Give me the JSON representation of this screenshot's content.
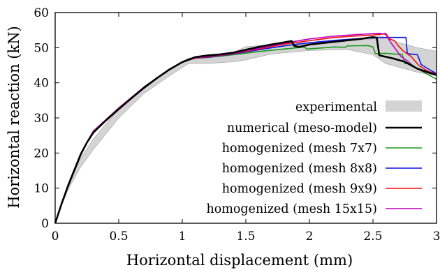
{
  "chart_data": {
    "type": "line",
    "xlabel": "Horizontal displacement (mm)",
    "ylabel": "Horizontal reaction (kN)",
    "xlim": [
      0,
      3
    ],
    "ylim": [
      0,
      60
    ],
    "xticks": [
      "0",
      "0.5",
      "1",
      "1.5",
      "2",
      "2.5",
      "3"
    ],
    "yticks": [
      "0",
      "10",
      "20",
      "30",
      "40",
      "50",
      "60"
    ],
    "grid": false,
    "legend_position": "bottom-right",
    "colors": {
      "experimental": "#d4d4d4",
      "numerical": "#000000",
      "mesh7": "#1a9a1a",
      "mesh8": "#1010e0",
      "mesh9": "#f01010",
      "mesh15": "#c000c0"
    },
    "experimental_band": {
      "name": "experimental",
      "upper": [
        [
          0,
          0
        ],
        [
          0.05,
          6
        ],
        [
          0.1,
          11
        ],
        [
          0.2,
          18.5
        ],
        [
          0.3,
          24
        ],
        [
          0.5,
          32.5
        ],
        [
          0.7,
          39
        ],
        [
          0.9,
          44
        ],
        [
          1.05,
          47
        ],
        [
          1.2,
          47.6
        ],
        [
          1.4,
          48.6
        ],
        [
          1.5,
          50.3
        ],
        [
          1.7,
          50.8
        ],
        [
          2.0,
          51.5
        ],
        [
          2.3,
          52
        ],
        [
          2.5,
          52.5
        ],
        [
          2.55,
          53.5
        ],
        [
          2.7,
          51.5
        ],
        [
          2.85,
          50
        ],
        [
          3.0,
          49
        ]
      ],
      "lower": [
        [
          3.0,
          42
        ],
        [
          2.85,
          43
        ],
        [
          2.75,
          44
        ],
        [
          2.6,
          45.5
        ],
        [
          2.5,
          48
        ],
        [
          2.3,
          49.5
        ],
        [
          2.0,
          49.2
        ],
        [
          1.7,
          48.2
        ],
        [
          1.5,
          46.5
        ],
        [
          1.4,
          46
        ],
        [
          1.2,
          45.5
        ],
        [
          1.05,
          45.5
        ],
        [
          0.9,
          42
        ],
        [
          0.7,
          37
        ],
        [
          0.5,
          30
        ],
        [
          0.3,
          21
        ],
        [
          0.2,
          16
        ],
        [
          0.1,
          9.5
        ],
        [
          0.05,
          5
        ],
        [
          0,
          0
        ]
      ]
    },
    "series": [
      {
        "name": "numerical (meso-model)",
        "color": "numerical",
        "width": 2.6,
        "points": [
          [
            0,
            0
          ],
          [
            0.05,
            5.5
          ],
          [
            0.1,
            10.5
          ],
          [
            0.15,
            15
          ],
          [
            0.2,
            19.5
          ],
          [
            0.25,
            23
          ],
          [
            0.3,
            25.8
          ],
          [
            0.4,
            29.3
          ],
          [
            0.5,
            32.5
          ],
          [
            0.6,
            35.6
          ],
          [
            0.7,
            38.6
          ],
          [
            0.8,
            41.3
          ],
          [
            0.9,
            43.8
          ],
          [
            1.0,
            45.9
          ],
          [
            1.1,
            47.3
          ],
          [
            1.2,
            47.8
          ],
          [
            1.3,
            48.1
          ],
          [
            1.4,
            48.6
          ],
          [
            1.5,
            49.4
          ],
          [
            1.6,
            50.2
          ],
          [
            1.7,
            50.9
          ],
          [
            1.8,
            51.5
          ],
          [
            1.86,
            51.9
          ],
          [
            1.88,
            50.5
          ],
          [
            1.92,
            50.2
          ],
          [
            2.0,
            50.9
          ],
          [
            2.2,
            51.7
          ],
          [
            2.4,
            52.5
          ],
          [
            2.5,
            53.0
          ],
          [
            2.53,
            52.8
          ],
          [
            2.55,
            47.8
          ],
          [
            2.65,
            47.0
          ],
          [
            2.75,
            46.0
          ],
          [
            2.85,
            44.0
          ],
          [
            2.95,
            42.8
          ],
          [
            3.0,
            42.3
          ]
        ]
      },
      {
        "name": "homogenized (mesh 7x7)",
        "color": "mesh7",
        "width": 1.6,
        "points": [
          [
            0,
            0
          ],
          [
            0.1,
            10.8
          ],
          [
            0.2,
            19.8
          ],
          [
            0.3,
            26.2
          ],
          [
            0.5,
            32.8
          ],
          [
            0.7,
            38.8
          ],
          [
            0.9,
            43.9
          ],
          [
            1.0,
            45.9
          ],
          [
            1.1,
            47.0
          ],
          [
            1.2,
            47.2
          ],
          [
            1.4,
            48.0
          ],
          [
            1.6,
            48.9
          ],
          [
            1.8,
            49.6
          ],
          [
            1.96,
            50.2
          ],
          [
            1.98,
            49.6
          ],
          [
            2.2,
            50.2
          ],
          [
            2.28,
            50.1
          ],
          [
            2.3,
            50.5
          ],
          [
            2.46,
            50.6
          ],
          [
            2.5,
            50.2
          ],
          [
            2.52,
            48.3
          ],
          [
            2.6,
            48.4
          ],
          [
            2.7,
            48.1
          ],
          [
            2.73,
            48.1
          ],
          [
            2.75,
            45.5
          ],
          [
            2.8,
            45.3
          ],
          [
            2.85,
            44.0
          ],
          [
            2.93,
            42.4
          ],
          [
            3.0,
            41.0
          ]
        ]
      },
      {
        "name": "homogenized (mesh 8x8)",
        "color": "mesh8",
        "width": 1.6,
        "points": [
          [
            0,
            0
          ],
          [
            0.1,
            10.8
          ],
          [
            0.2,
            19.8
          ],
          [
            0.3,
            26.2
          ],
          [
            0.5,
            32.8
          ],
          [
            0.7,
            38.8
          ],
          [
            0.9,
            43.9
          ],
          [
            1.0,
            45.9
          ],
          [
            1.1,
            47.0
          ],
          [
            1.2,
            47.3
          ],
          [
            1.4,
            48.2
          ],
          [
            1.6,
            49.4
          ],
          [
            1.8,
            50.5
          ],
          [
            2.0,
            51.4
          ],
          [
            2.2,
            52.1
          ],
          [
            2.4,
            52.6
          ],
          [
            2.6,
            52.9
          ],
          [
            2.7,
            52.9
          ],
          [
            2.76,
            52.9
          ],
          [
            2.77,
            48.3
          ],
          [
            2.85,
            48.0
          ],
          [
            2.88,
            45.2
          ],
          [
            2.95,
            43.6
          ],
          [
            3.0,
            42.6
          ]
        ]
      },
      {
        "name": "homogenized (mesh 9x9)",
        "color": "mesh9",
        "width": 1.6,
        "points": [
          [
            0,
            0
          ],
          [
            0.1,
            10.8
          ],
          [
            0.2,
            19.8
          ],
          [
            0.3,
            26.2
          ],
          [
            0.5,
            32.8
          ],
          [
            0.7,
            38.8
          ],
          [
            0.9,
            43.9
          ],
          [
            1.0,
            45.9
          ],
          [
            1.1,
            47.0
          ],
          [
            1.2,
            47.4
          ],
          [
            1.4,
            48.3
          ],
          [
            1.6,
            49.6
          ],
          [
            1.8,
            51.0
          ],
          [
            2.0,
            52.0
          ],
          [
            2.2,
            52.9
          ],
          [
            2.4,
            53.4
          ],
          [
            2.5,
            53.6
          ],
          [
            2.58,
            53.9
          ],
          [
            2.6,
            54.1
          ],
          [
            2.63,
            52.5
          ],
          [
            2.67,
            52.0
          ],
          [
            2.7,
            50.5
          ],
          [
            2.74,
            49.0
          ],
          [
            2.8,
            47.5
          ],
          [
            2.86,
            45.0
          ],
          [
            2.93,
            43.3
          ],
          [
            3.0,
            42.5
          ]
        ]
      },
      {
        "name": "homogenized (mesh 15x15)",
        "color": "mesh15",
        "width": 1.6,
        "points": [
          [
            0,
            0
          ],
          [
            0.1,
            10.8
          ],
          [
            0.2,
            19.8
          ],
          [
            0.3,
            26.2
          ],
          [
            0.5,
            32.8
          ],
          [
            0.7,
            38.8
          ],
          [
            0.9,
            43.9
          ],
          [
            1.0,
            45.9
          ],
          [
            1.1,
            47.1
          ],
          [
            1.2,
            47.5
          ],
          [
            1.4,
            48.4
          ],
          [
            1.6,
            49.8
          ],
          [
            1.8,
            51.3
          ],
          [
            2.0,
            52.5
          ],
          [
            2.2,
            53.3
          ],
          [
            2.4,
            53.8
          ],
          [
            2.5,
            54.0
          ],
          [
            2.55,
            54.1
          ],
          [
            2.6,
            53.8
          ],
          [
            2.64,
            51.5
          ],
          [
            2.68,
            49.5
          ],
          [
            2.72,
            47.5
          ],
          [
            2.78,
            46.0
          ],
          [
            2.82,
            44.5
          ],
          [
            2.9,
            43.2
          ],
          [
            3.0,
            42.1
          ]
        ]
      }
    ]
  }
}
